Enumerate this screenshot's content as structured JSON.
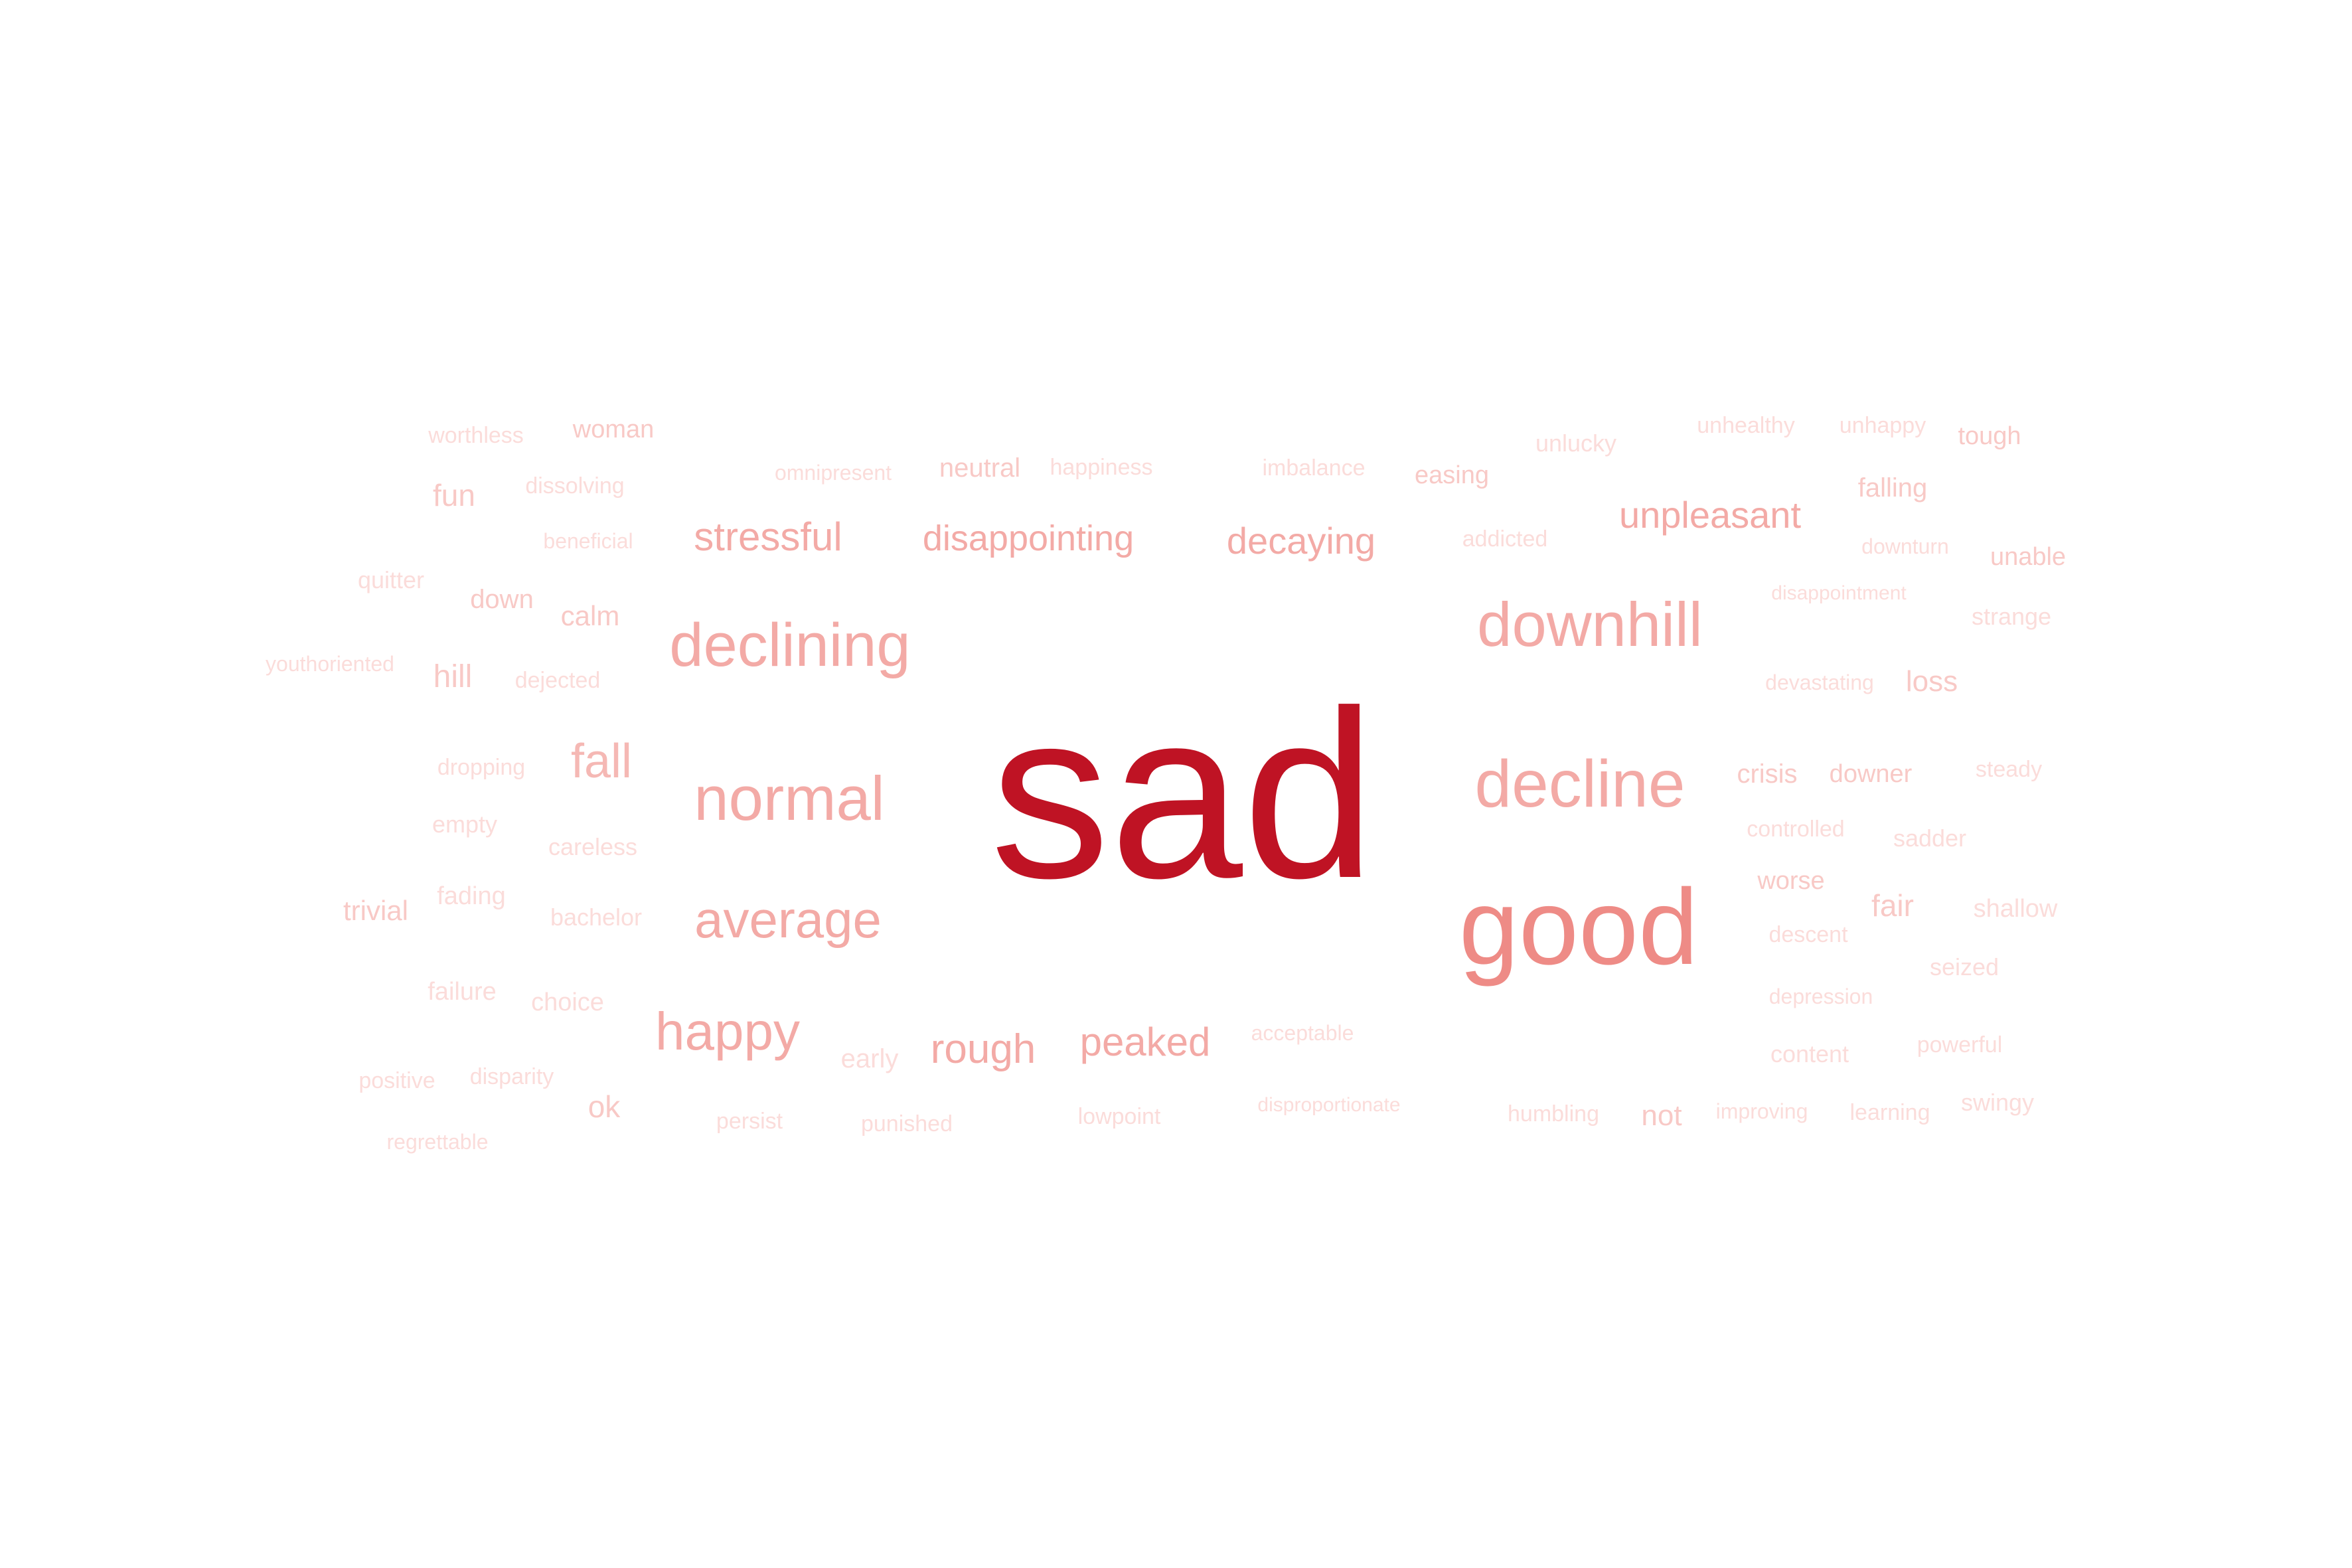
{
  "colors": {
    "background": "#ffffff",
    "strongest": "#bf1324",
    "strong": "#ee8b86",
    "medium": "#f3aaa6",
    "light": "#f8c9c6",
    "faint": "#fbdcda"
  },
  "words": [
    {
      "text": "sad",
      "color": "#bf1324"
    },
    {
      "text": "good",
      "color": "#ee8b86"
    },
    {
      "text": "downhill",
      "color": "#f3aaa6"
    },
    {
      "text": "decline",
      "color": "#f3aaa6"
    },
    {
      "text": "normal",
      "color": "#f3aaa6"
    },
    {
      "text": "declining",
      "color": "#f3aaa6"
    },
    {
      "text": "average",
      "color": "#f3aaa6"
    },
    {
      "text": "happy",
      "color": "#f3aaa6"
    },
    {
      "text": "stressful",
      "color": "#f3aaa6"
    },
    {
      "text": "disappointing",
      "color": "#f3aaa6"
    },
    {
      "text": "decaying",
      "color": "#f3aaa6"
    },
    {
      "text": "unpleasant",
      "color": "#f3aaa6"
    },
    {
      "text": "rough",
      "color": "#f3aaa6"
    },
    {
      "text": "peaked",
      "color": "#f3aaa6"
    },
    {
      "text": "fall",
      "color": "#f5b8b4"
    },
    {
      "text": "worthless",
      "color": "#fbdcda"
    },
    {
      "text": "woman",
      "color": "#f8c9c6"
    },
    {
      "text": "fun",
      "color": "#f8c9c6"
    },
    {
      "text": "dissolving",
      "color": "#fbdcda"
    },
    {
      "text": "omnipresent",
      "color": "#fbdcda"
    },
    {
      "text": "neutral",
      "color": "#f8c9c6"
    },
    {
      "text": "happiness",
      "color": "#fbdcda"
    },
    {
      "text": "imbalance",
      "color": "#fbdcda"
    },
    {
      "text": "easing",
      "color": "#f8c9c6"
    },
    {
      "text": "unlucky",
      "color": "#fbdcda"
    },
    {
      "text": "unhealthy",
      "color": "#fbdcda"
    },
    {
      "text": "unhappy",
      "color": "#fbdcda"
    },
    {
      "text": "tough",
      "color": "#f8c9c6"
    },
    {
      "text": "falling",
      "color": "#f8c9c6"
    },
    {
      "text": "beneficial",
      "color": "#fbdcda"
    },
    {
      "text": "addicted",
      "color": "#fbdcda"
    },
    {
      "text": "downturn",
      "color": "#fbdcda"
    },
    {
      "text": "unable",
      "color": "#f8c9c6"
    },
    {
      "text": "quitter",
      "color": "#fbdcda"
    },
    {
      "text": "down",
      "color": "#f8c9c6"
    },
    {
      "text": "calm",
      "color": "#f8c9c6"
    },
    {
      "text": "disappointment",
      "color": "#fbdcda"
    },
    {
      "text": "strange",
      "color": "#fbdcda"
    },
    {
      "text": "youthoriented",
      "color": "#fbdcda"
    },
    {
      "text": "hill",
      "color": "#f8c9c6"
    },
    {
      "text": "dejected",
      "color": "#fbdcda"
    },
    {
      "text": "devastating",
      "color": "#fbdcda"
    },
    {
      "text": "loss",
      "color": "#f8c9c6"
    },
    {
      "text": "dropping",
      "color": "#fbdcda"
    },
    {
      "text": "crisis",
      "color": "#f8c9c6"
    },
    {
      "text": "downer",
      "color": "#f8c9c6"
    },
    {
      "text": "steady",
      "color": "#fbdcda"
    },
    {
      "text": "empty",
      "color": "#fbdcda"
    },
    {
      "text": "careless",
      "color": "#fbdcda"
    },
    {
      "text": "controlled",
      "color": "#fbdcda"
    },
    {
      "text": "sadder",
      "color": "#fbdcda"
    },
    {
      "text": "worse",
      "color": "#f8c9c6"
    },
    {
      "text": "trivial",
      "color": "#f8c9c6"
    },
    {
      "text": "fading",
      "color": "#fbdcda"
    },
    {
      "text": "bachelor",
      "color": "#fbdcda"
    },
    {
      "text": "fair",
      "color": "#f8c9c6"
    },
    {
      "text": "shallow",
      "color": "#fbdcda"
    },
    {
      "text": "descent",
      "color": "#fbdcda"
    },
    {
      "text": "seized",
      "color": "#fbdcda"
    },
    {
      "text": "failure",
      "color": "#fbdcda"
    },
    {
      "text": "choice",
      "color": "#fbdcda"
    },
    {
      "text": "depression",
      "color": "#fbdcda"
    },
    {
      "text": "acceptable",
      "color": "#fbdcda"
    },
    {
      "text": "early",
      "color": "#fbdcda"
    },
    {
      "text": "content",
      "color": "#fbdcda"
    },
    {
      "text": "powerful",
      "color": "#fbdcda"
    },
    {
      "text": "positive",
      "color": "#fbdcda"
    },
    {
      "text": "disparity",
      "color": "#fbdcda"
    },
    {
      "text": "ok",
      "color": "#f8c9c6"
    },
    {
      "text": "disproportionate",
      "color": "#fbdcda"
    },
    {
      "text": "humbling",
      "color": "#fbdcda"
    },
    {
      "text": "not",
      "color": "#f8c9c6"
    },
    {
      "text": "improving",
      "color": "#fbdcda"
    },
    {
      "text": "learning",
      "color": "#fbdcda"
    },
    {
      "text": "swingy",
      "color": "#fbdcda"
    },
    {
      "text": "persist",
      "color": "#fbdcda"
    },
    {
      "text": "punished",
      "color": "#fbdcda"
    },
    {
      "text": "lowpoint",
      "color": "#fbdcda"
    },
    {
      "text": "regrettable",
      "color": "#fbdcda"
    }
  ]
}
